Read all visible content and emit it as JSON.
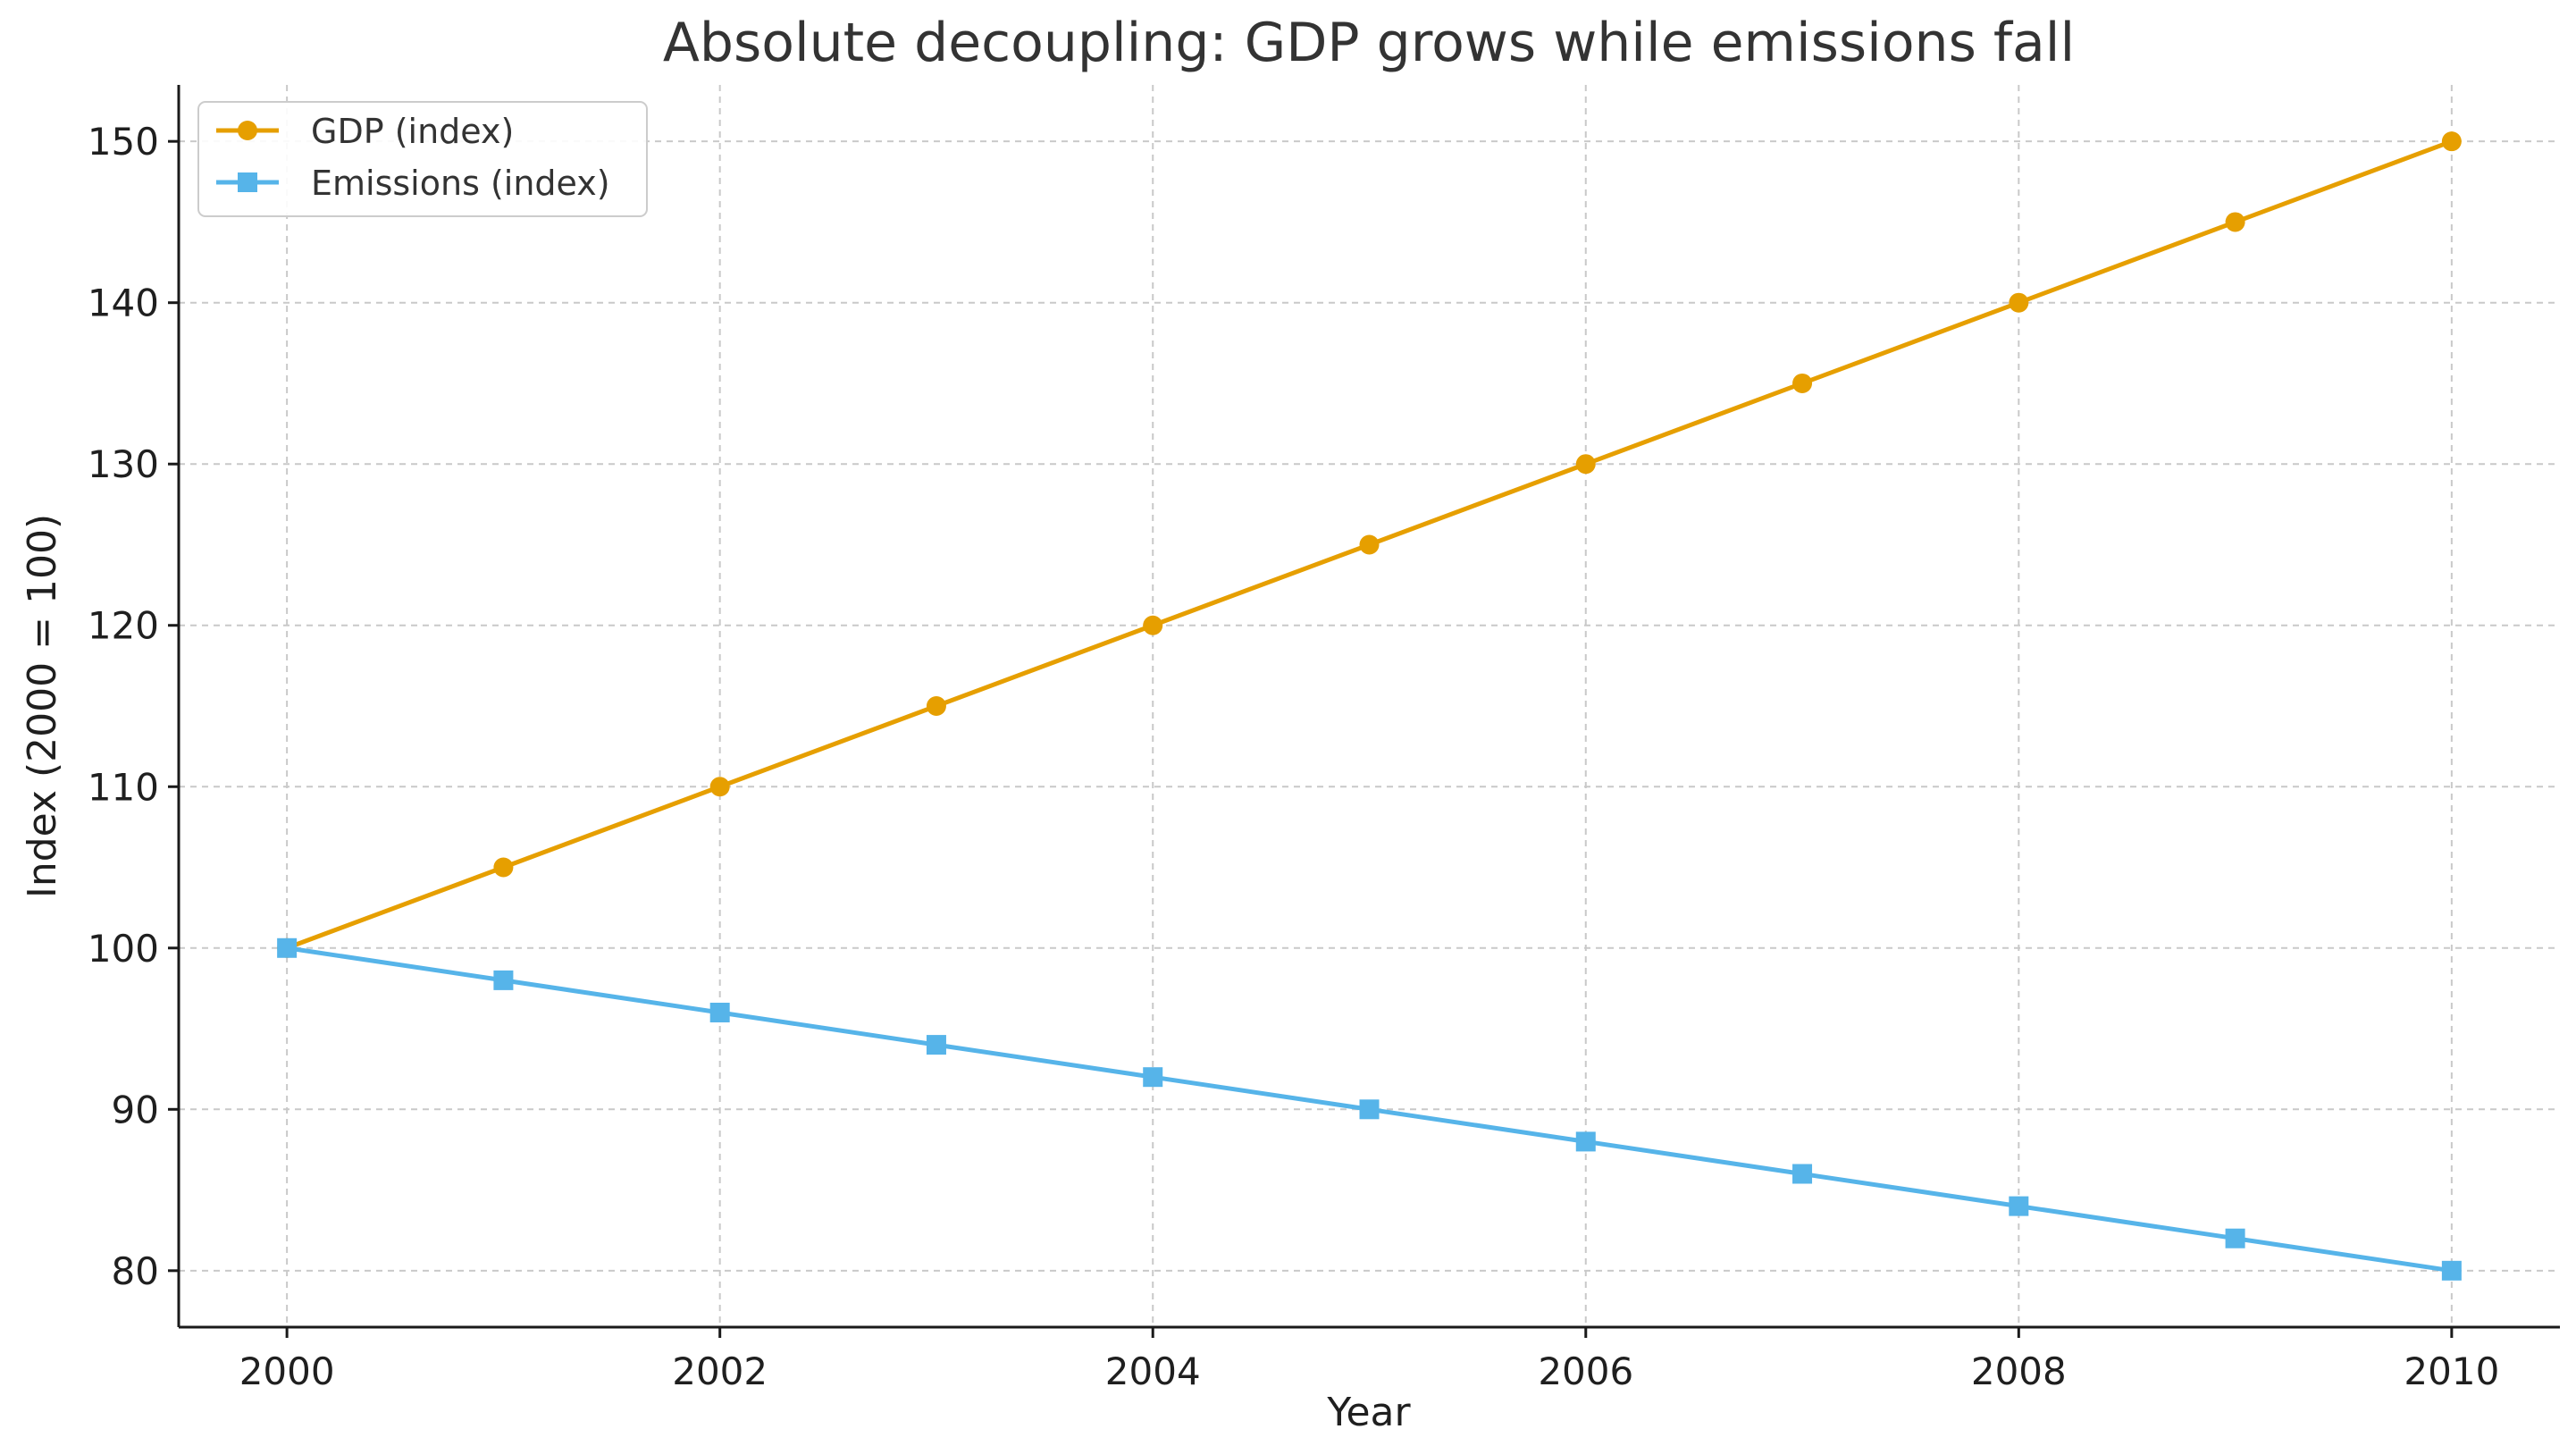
{
  "chart_data": {
    "type": "line",
    "title": "Absolute decoupling: GDP grows while emissions fall",
    "xlabel": "Year",
    "ylabel": "Index (2000 = 100)",
    "x": [
      2000,
      2001,
      2002,
      2003,
      2004,
      2005,
      2006,
      2007,
      2008,
      2009,
      2010
    ],
    "xlim": [
      1999.5,
      2010.5
    ],
    "ylim": [
      76.5,
      153.5
    ],
    "xticks": [
      2000,
      2002,
      2004,
      2006,
      2008,
      2010
    ],
    "xtick_labels": [
      "2000",
      "2002",
      "2004",
      "2006",
      "2008",
      "2010"
    ],
    "yticks": [
      80,
      90,
      100,
      110,
      120,
      130,
      140,
      150
    ],
    "ytick_labels": [
      "80",
      "90",
      "100",
      "110",
      "120",
      "130",
      "140",
      "150"
    ],
    "grid": true,
    "legend_position": "top-left",
    "series": [
      {
        "name": "GDP (index)",
        "marker": "circle",
        "color": "#E69F00",
        "values": [
          100,
          105,
          110,
          115,
          120,
          125,
          130,
          135,
          140,
          145,
          150
        ]
      },
      {
        "name": "Emissions (index)",
        "marker": "square",
        "color": "#56B4E9",
        "values": [
          100,
          98,
          96,
          94,
          92,
          90,
          88,
          86,
          84,
          82,
          80
        ]
      }
    ]
  }
}
